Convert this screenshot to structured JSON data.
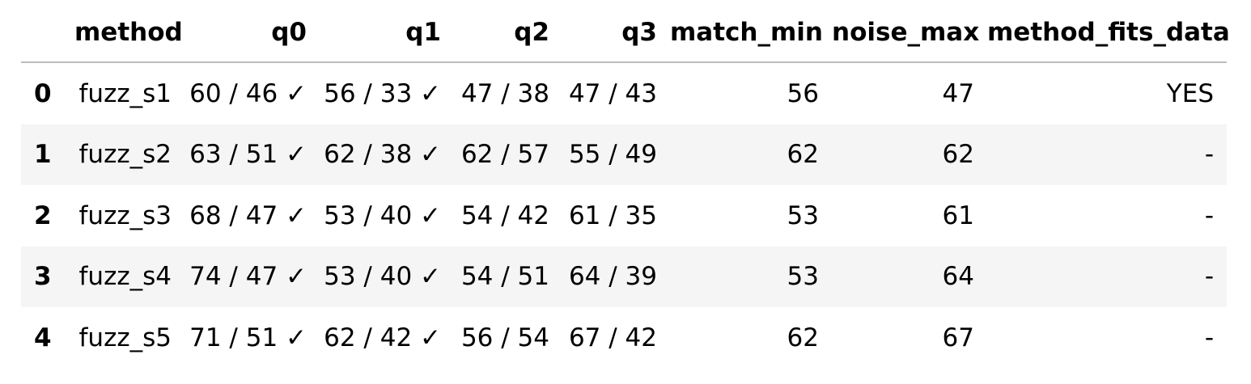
{
  "table": {
    "columns": [
      "",
      "method",
      "q0",
      "q1",
      "q2",
      "q3",
      "match_min",
      "noise_max",
      "method_fits_data"
    ],
    "rows": [
      {
        "index": "0",
        "method": "fuzz_s1",
        "q0": "60 / 46 ✓",
        "q1": "56 / 33 ✓",
        "q2": "47 / 38",
        "q3": "47 / 43",
        "match_min": "56",
        "noise_max": "47",
        "method_fits_data": "YES"
      },
      {
        "index": "1",
        "method": "fuzz_s2",
        "q0": "63 / 51 ✓",
        "q1": "62 / 38 ✓",
        "q2": "62 / 57",
        "q3": "55 / 49",
        "match_min": "62",
        "noise_max": "62",
        "method_fits_data": "-"
      },
      {
        "index": "2",
        "method": "fuzz_s3",
        "q0": "68 / 47 ✓",
        "q1": "53 / 40 ✓",
        "q2": "54 / 42",
        "q3": "61 / 35",
        "match_min": "53",
        "noise_max": "61",
        "method_fits_data": "-"
      },
      {
        "index": "3",
        "method": "fuzz_s4",
        "q0": "74 / 47 ✓",
        "q1": "53 / 40 ✓",
        "q2": "54 / 51",
        "q3": "64 / 39",
        "match_min": "53",
        "noise_max": "64",
        "method_fits_data": "-"
      },
      {
        "index": "4",
        "method": "fuzz_s5",
        "q0": "71 / 51 ✓",
        "q1": "62 / 42 ✓",
        "q2": "56 / 54",
        "q3": "67 / 42",
        "match_min": "62",
        "noise_max": "67",
        "method_fits_data": "-"
      }
    ]
  },
  "colors": {
    "header_border": "#bdbdbd",
    "stripe": "#f5f5f5",
    "text": "#000000"
  }
}
